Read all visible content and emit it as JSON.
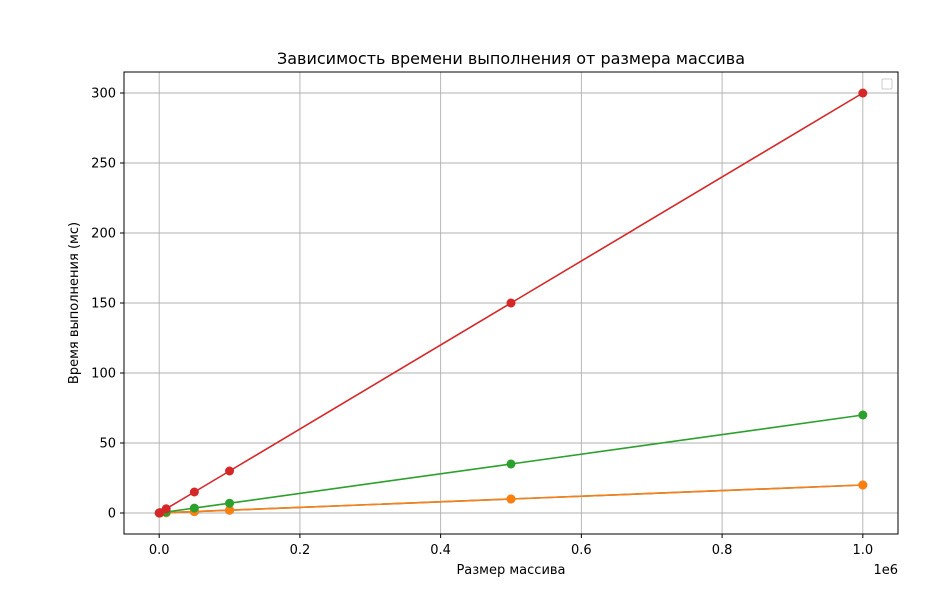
{
  "chart_data": {
    "type": "line",
    "title": "Зависимость времени выполнения от размера массива",
    "xlabel": "Размер массива",
    "ylabel": "Время выполнения (мс)",
    "x_offset_label": "1e6",
    "xlim": [
      -0.05,
      1.05
    ],
    "ylim": [
      -15,
      315
    ],
    "x_ticks": [
      0.0,
      0.2,
      0.4,
      0.6,
      0.8,
      1.0
    ],
    "x_tick_labels": [
      "0.0",
      "0.2",
      "0.4",
      "0.6",
      "0.8",
      "1.0"
    ],
    "y_ticks": [
      0,
      50,
      100,
      150,
      200,
      250,
      300
    ],
    "y_tick_labels": [
      "0",
      "50",
      "100",
      "150",
      "200",
      "250",
      "300"
    ],
    "grid": true,
    "legend": "top-right (empty)",
    "x": [
      0.0001,
      0.001,
      0.01,
      0.05,
      0.1,
      0.5,
      1.0
    ],
    "series": [
      {
        "color": "#1f77b4",
        "values": [
          0.002,
          0.02,
          0.2,
          1,
          2,
          10,
          20
        ]
      },
      {
        "color": "#ff7f0e",
        "values": [
          0.002,
          0.02,
          0.2,
          1,
          2,
          10,
          20
        ]
      },
      {
        "color": "#2ca02c",
        "values": [
          0.007,
          0.07,
          0.7,
          3.5,
          7,
          35,
          70
        ]
      },
      {
        "color": "#d62728",
        "values": [
          0.03,
          0.3,
          3,
          15,
          30,
          150,
          300
        ]
      }
    ]
  }
}
